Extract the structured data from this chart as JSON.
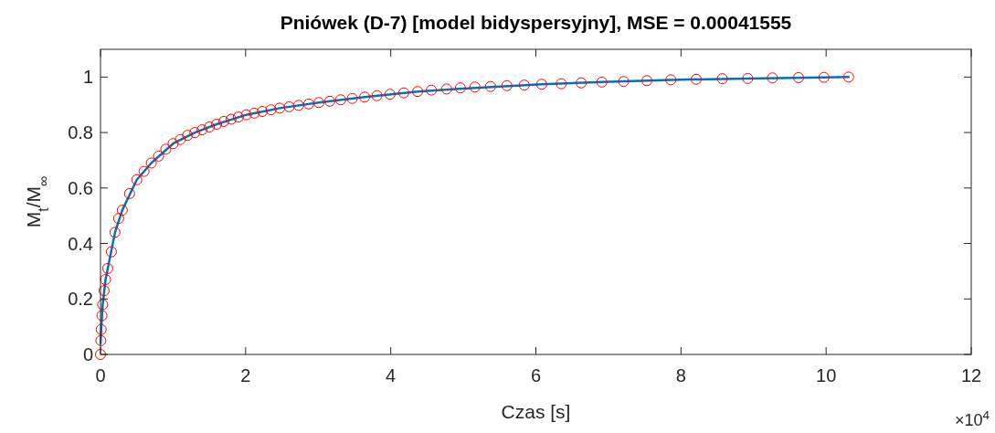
{
  "chart_data": {
    "type": "scatter",
    "title": "Pniówek (D-7) [model bidyspersyjny], MSE = 0.00041555",
    "xlabel": "Czas [s]",
    "ylabel": "M$_{t}$/M$_{∞}$",
    "annotations": [
      "×10$^{4}$"
    ],
    "xlim": [
      0,
      12
    ],
    "xticks": [
      0,
      2,
      4,
      6,
      8,
      10,
      12
    ],
    "ylim": [
      0,
      1.1
    ],
    "yticks": [
      0,
      0.2,
      0.4,
      0.6,
      0.8,
      1
    ],
    "series": [
      {
        "color": "#ff0000",
        "marker": "circle",
        "x": [
          0,
          0.005,
          0.01,
          0.02,
          0.03,
          0.05,
          0.07,
          0.1,
          0.15,
          0.2,
          0.25,
          0.3,
          0.4,
          0.5,
          0.6,
          0.7,
          0.8,
          0.9,
          1.0,
          1.1,
          1.2,
          1.3,
          1.4,
          1.5,
          1.6,
          1.7,
          1.8,
          1.9,
          2.01,
          2.12,
          2.23,
          2.35,
          2.47,
          2.6,
          2.73,
          2.87,
          3.01,
          3.16,
          3.31,
          3.47,
          3.64,
          3.81,
          3.99,
          4.18,
          4.37,
          4.56,
          4.77,
          4.96,
          5.16,
          5.375,
          5.6,
          5.84,
          6.08,
          6.35,
          6.625,
          6.91,
          7.21,
          7.53,
          7.86,
          8.21,
          8.57,
          8.92,
          9.26,
          9.62,
          9.97,
          10.31
        ],
        "values": [
          0,
          0.05,
          0.09,
          0.14,
          0.18,
          0.23,
          0.27,
          0.31,
          0.37,
          0.44,
          0.49,
          0.52,
          0.58,
          0.63,
          0.66,
          0.69,
          0.715,
          0.74,
          0.76,
          0.775,
          0.79,
          0.8,
          0.81,
          0.82,
          0.83,
          0.84,
          0.848,
          0.856,
          0.864,
          0.87,
          0.876,
          0.882,
          0.888,
          0.893,
          0.898,
          0.903,
          0.908,
          0.913,
          0.918,
          0.923,
          0.928,
          0.933,
          0.938,
          0.943,
          0.948,
          0.953,
          0.957,
          0.961,
          0.964,
          0.966,
          0.969,
          0.971,
          0.974,
          0.976,
          0.979,
          0.982,
          0.984,
          0.987,
          0.99,
          0.992,
          0.994,
          0.995,
          0.997,
          0.998,
          0.999,
          1.0
        ]
      },
      {
        "type": "line",
        "color": "#0072bd",
        "marker": "none",
        "line_style": "solid",
        "x": [
          0,
          0.01,
          0.03,
          0.07,
          0.1,
          0.2,
          0.3,
          0.5,
          0.7,
          1.0,
          1.3,
          1.6,
          2.01,
          2.47,
          3.01,
          3.64,
          4.37,
          5.16,
          6.08,
          6.91,
          7.86,
          8.92,
          9.97,
          10.31
        ],
        "values": [
          0.04,
          0.09,
          0.18,
          0.27,
          0.31,
          0.44,
          0.52,
          0.63,
          0.69,
          0.76,
          0.8,
          0.83,
          0.864,
          0.888,
          0.908,
          0.928,
          0.948,
          0.961,
          0.974,
          0.982,
          0.99,
          0.995,
          0.999,
          1.0
        ]
      }
    ]
  }
}
